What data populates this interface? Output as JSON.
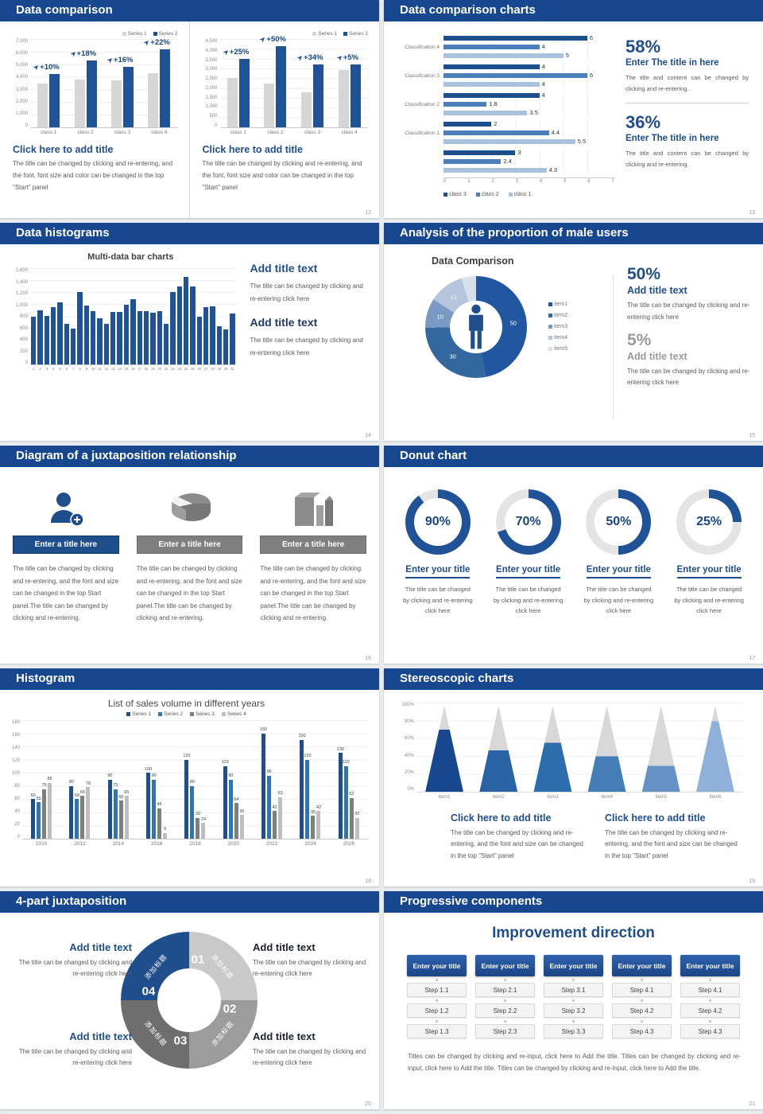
{
  "colors": {
    "header": "#17478f",
    "dark_blue": "#1f4e8c",
    "bar_blue": "#1f5296",
    "bar_gray": "#d6d6d6",
    "mid_blue": "#4c7fba",
    "light_blue": "#a9c2dd",
    "gray": "#7f7f7f",
    "light_gray": "#bfbfbf"
  },
  "slides": {
    "s12": {
      "title": "Data comparison",
      "page": "12",
      "block_title": "Click here to add title",
      "legend": [
        "Series 1",
        "Series 2"
      ],
      "left": {
        "type": "bar",
        "yticks": [
          "7,000",
          "6,000",
          "5,000",
          "4,000",
          "3,000",
          "2,000",
          "1,000",
          "0"
        ],
        "ymax": 7000,
        "categories": [
          "class 1",
          "class 2",
          "class 3",
          "class 4"
        ],
        "series1": [
          3500,
          3800,
          3700,
          4300
        ],
        "series2": [
          4200,
          5300,
          4800,
          6200
        ],
        "pct": [
          "+10%",
          "+18%",
          "+16%",
          "+22%"
        ],
        "body": "The title can be changed by clicking and re-entering, and the font, font size and color can be changed in the top \"Start\" panel"
      },
      "right": {
        "type": "bar",
        "yticks": [
          "4,500",
          "4,000",
          "3,500",
          "3,000",
          "2,500",
          "2,000",
          "1,500",
          "1,000",
          "500",
          "0"
        ],
        "ymax": 4500,
        "categories": [
          "class 1",
          "class 2",
          "class 3",
          "class 4"
        ],
        "series1": [
          2500,
          2250,
          1800,
          2900
        ],
        "series2": [
          3500,
          4150,
          3200,
          3200
        ],
        "pct": [
          "+25%",
          "+50%",
          "+34%",
          "+5%"
        ],
        "body": "The title can be changed by clicking and re-entering, and the font, font size and color can be changed in the top \"Start\" panel"
      }
    },
    "s13": {
      "title": "Data comparison charts",
      "page": "13",
      "type": "bar-horizontal",
      "xmax": 7,
      "xticks": [
        "0",
        "1",
        "2",
        "3",
        "4",
        "5",
        "6",
        "7"
      ],
      "legend": [
        "class 3",
        "class 2",
        "class 1"
      ],
      "series_colors": [
        "#1f4e8c",
        "#4c7fba",
        "#a9c2dd"
      ],
      "groups": [
        {
          "label": "Classification 4",
          "values": [
            6,
            4,
            5
          ]
        },
        {
          "label": "Classification 3",
          "values": [
            4,
            6,
            4
          ]
        },
        {
          "label": "Classification 2",
          "values": [
            4,
            1.8,
            3.5
          ]
        },
        {
          "label": "Classification 1",
          "values": [
            2,
            4.4,
            5.5
          ]
        },
        {
          "label": "",
          "values": [
            3,
            2.4,
            4.3
          ]
        }
      ],
      "stats": [
        {
          "pct": "58%",
          "title": "Enter The title in here",
          "body": "The title and content can be changed by clicking and re-entering."
        },
        {
          "pct": "36%",
          "title": "Enter The title in here",
          "body": "The title and content can be changed by clicking and re-entering."
        }
      ]
    },
    "s14": {
      "title": "Data histograms",
      "page": "14",
      "chart_title": "Multi-data bar charts",
      "type": "bar",
      "ymax": 1600,
      "yticks": [
        "1,600",
        "1,400",
        "1,200",
        "1,000",
        "800",
        "600",
        "400",
        "200",
        "0"
      ],
      "xlabels": [
        "1",
        "2",
        "3",
        "4",
        "5",
        "6",
        "7",
        "8",
        "9",
        "10",
        "11",
        "12",
        "13",
        "14",
        "15",
        "16",
        "17",
        "18",
        "19",
        "20",
        "21",
        "22",
        "23",
        "24",
        "25",
        "26",
        "27",
        "28",
        "29",
        "30",
        "31"
      ],
      "values": [
        800,
        900,
        810,
        950,
        1030,
        680,
        600,
        1200,
        980,
        880,
        770,
        680,
        870,
        870,
        990,
        1090,
        880,
        880,
        860,
        880,
        680,
        1200,
        1290,
        1450,
        1290,
        790,
        950,
        960,
        640,
        580,
        850
      ],
      "blocks": [
        {
          "heading": "Add title text",
          "body": "The title can be changed by clicking and re-entering click here"
        },
        {
          "heading": "Add title text",
          "body": "The title can be changed by clicking and re-entering click here"
        }
      ]
    },
    "s15": {
      "title": "Analysis of the proportion of male users",
      "page": "15",
      "chart_title": "Data Comparison",
      "type": "pie",
      "values": [
        50,
        30,
        10,
        12,
        5
      ],
      "seg_labels": [
        "50",
        "30",
        "10",
        "12",
        ""
      ],
      "seg_colors": [
        "#2057a0",
        "#33689f",
        "#7a99c4",
        "#b4c5dc",
        "#d7dfeb"
      ],
      "legend": [
        "item1",
        "item2",
        "item3",
        "item4",
        "item5"
      ],
      "stats": [
        {
          "pct": "50%",
          "heading": "Add title text",
          "body": "The title can be changed by clicking and re-entering click here"
        },
        {
          "pct": "5%",
          "heading": "Add title text",
          "body": "The title can be changed by clicking and re-entering click here"
        }
      ]
    },
    "s16": {
      "title": "Diagram of a juxtaposition relationship",
      "page": "16",
      "cols": [
        {
          "icon": "woman-add-icon",
          "bar": "Enter a title here",
          "body": "The title can be changed by clicking and re-entering, and the font and size can be changed in the top Start panel.The title can be changed by clicking and re-entering."
        },
        {
          "icon": "pie-3d-icon",
          "bar": "Enter a title here",
          "body": "The title can be changed by clicking and re-entering, and the font and size can be changed in the top Start panel.The title can be changed by clicking and re-entering."
        },
        {
          "icon": "building-icon",
          "bar": "Enter a title here",
          "body": "The title can be changed by clicking and re-entering, and the font and size can be changed in the top Start panel.The title can be changed by clicking and re-entering."
        }
      ]
    },
    "s17": {
      "title": "Donut chart",
      "page": "17",
      "type": "pie",
      "items": [
        {
          "pct": "90%",
          "value": 90,
          "title": "Enter your title",
          "body": "The title can be changed by clicking and re-entering click here"
        },
        {
          "pct": "70%",
          "value": 70,
          "title": "Enter your title",
          "body": "The title can be changed by clicking and re-entering click here"
        },
        {
          "pct": "50%",
          "value": 50,
          "title": "Enter your title",
          "body": "The title can be changed by clicking and re-entering click here"
        },
        {
          "pct": "25%",
          "value": 25,
          "title": "Enter your title",
          "body": "The title can be changed by clicking and re-entering click here"
        }
      ]
    },
    "s18": {
      "title": "Histogram",
      "page": "18",
      "chart_title": "List of sales volume in different years",
      "type": "bar",
      "ymax": 180,
      "yticks": [
        "180",
        "160",
        "140",
        "120",
        "100",
        "80",
        "60",
        "40",
        "20",
        "0"
      ],
      "categories": [
        "2010",
        "2012",
        "2014",
        "2016",
        "2018",
        "2020",
        "2022",
        "2024",
        "2026"
      ],
      "legend": [
        "Series 1",
        "Series 2",
        "Series 3",
        "Series 4"
      ],
      "series_colors": [
        "#1f4e8c",
        "#2e75b6",
        "#7f7f7f",
        "#bfbfbf"
      ],
      "series": [
        {
          "name": "Series 1",
          "values": [
            60,
            80,
            90,
            100,
            120,
            110,
            160,
            150,
            130
          ]
        },
        {
          "name": "Series 2",
          "values": [
            55,
            60,
            75,
            90,
            80,
            90,
            96,
            120,
            110
          ]
        },
        {
          "name": "Series 3",
          "values": [
            75,
            65,
            58,
            46,
            32,
            54,
            42,
            35,
            62
          ]
        },
        {
          "name": "Series 4",
          "values": [
            85,
            78,
            65,
            9,
            24,
            36,
            63,
            42,
            32
          ]
        }
      ]
    },
    "s19": {
      "title": "Stereoscopic charts",
      "page": "19",
      "type": "bar",
      "yticks": [
        "100%",
        "80%",
        "60%",
        "40%",
        "20%",
        "0%"
      ],
      "items": [
        "item1",
        "item2",
        "item3",
        "item4",
        "item5",
        "item6"
      ],
      "fill_pct": [
        72,
        48,
        57,
        41,
        30,
        82
      ],
      "fill_colors": [
        "#17478f",
        "#2a62a6",
        "#2e6dad",
        "#447cb8",
        "#6691c6",
        "#8fb0d9"
      ],
      "blocks": [
        {
          "heading": "Click here to add title",
          "body": "The title can be changed by clicking and re-entering, and the font and size can be changed in the top \"Start\" panel"
        },
        {
          "heading": "Click here to add title",
          "body": "The title can be changed by clicking and re-entering, and the font and size can be changed in the top \"Start\" panel"
        }
      ]
    },
    "s20": {
      "title": "4-part juxtaposition",
      "page": "20",
      "segments": [
        {
          "num": "01",
          "label": "添加标题",
          "color": "#c9c9c9"
        },
        {
          "num": "02",
          "label": "添加标题",
          "color": "#9c9c9c"
        },
        {
          "num": "03",
          "label": "添加标题",
          "color": "#6e6e6e"
        },
        {
          "num": "04",
          "label": "添加标题",
          "color": "#1f4e8c"
        }
      ],
      "blocks": [
        {
          "heading": "Add title text",
          "body": "The title can be changed by clicking and re-entering click here"
        },
        {
          "heading": "Add title text",
          "body": "The title can be changed by clicking and re-entering click here"
        },
        {
          "heading": "Add title text",
          "body": "The title can be changed by clicking and re-entering click here"
        },
        {
          "heading": "Add title text",
          "body": "The title can be changed by clicking and re-entering click here"
        }
      ]
    },
    "s21": {
      "title": "Progressive components",
      "page": "21",
      "subtitle": "Improvement direction",
      "columns": [
        {
          "header": "Enter your title",
          "steps": [
            "Step 1.1",
            "Step 1.2",
            "Step 1.3"
          ]
        },
        {
          "header": "Enter your title",
          "steps": [
            "Step 2.1",
            "Step 2.2",
            "Step 2.3"
          ]
        },
        {
          "header": "Enter your title",
          "steps": [
            "Step 3.1",
            "Step 3.2",
            "Step 3.3"
          ]
        },
        {
          "header": "Enter your title",
          "steps": [
            "Step 4.1",
            "Step 4.2",
            "Step 4.3"
          ]
        },
        {
          "header": "Enter your title",
          "steps": [
            "Step 4.1",
            "Step 4.2",
            "Step 4.3"
          ]
        }
      ],
      "footer": "Titles can be changed by clicking and re-input, click here to Add the title. Titles can be changed by clicking and re-input, click here to Add the title. Titles can be changed by clicking and re-input, click here to Add the title."
    }
  }
}
